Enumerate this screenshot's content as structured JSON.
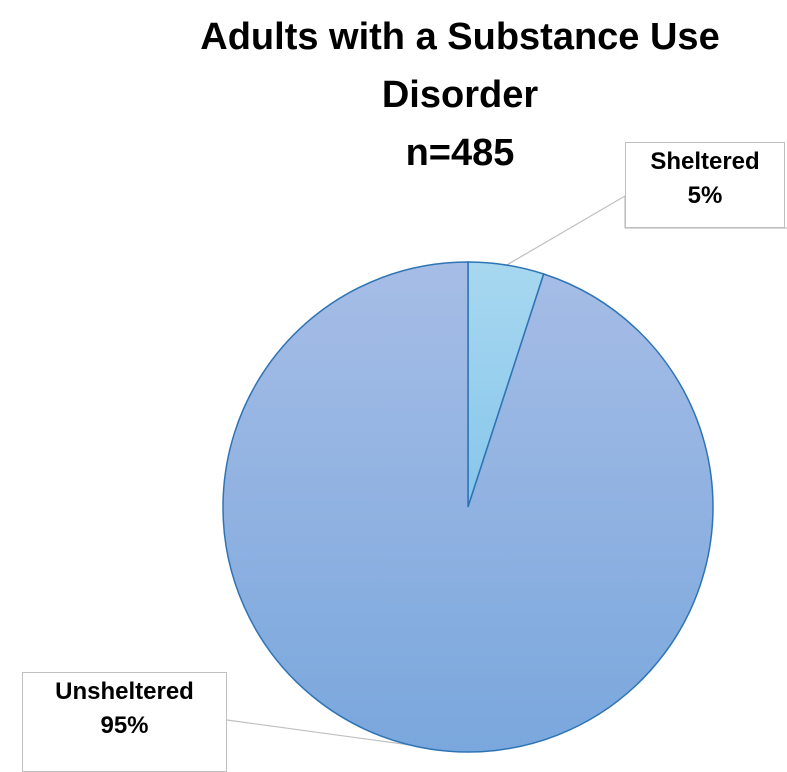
{
  "chart_data": {
    "type": "pie",
    "title_lines": [
      "Adults with a Substance Use",
      "Disorder",
      "n=485"
    ],
    "slices": [
      {
        "label": "Sheltered",
        "value": 5,
        "display": "5%",
        "color": "#9dd0ee"
      },
      {
        "label": "Unsheltered",
        "value": 95,
        "display": "95%",
        "color": "#8fb1e0"
      }
    ],
    "border_color": "#2e74b5",
    "start_angle": "12 o'clock",
    "direction": "clockwise",
    "legend": "none"
  }
}
